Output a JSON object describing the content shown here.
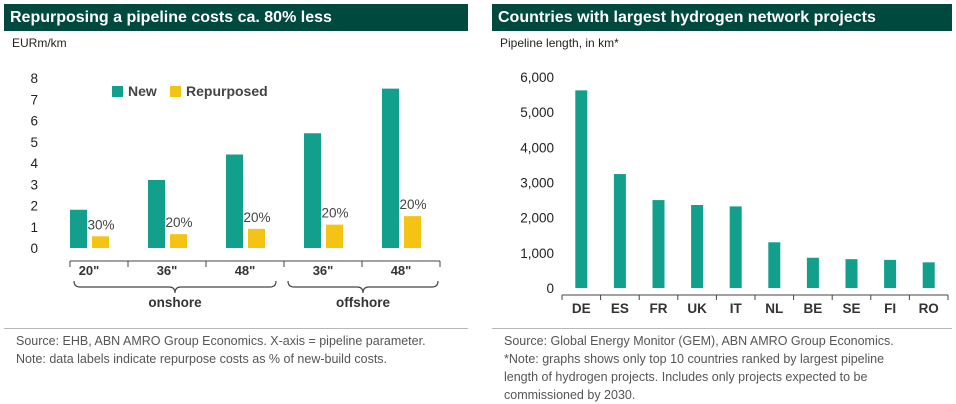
{
  "colors": {
    "title_bg": "#00493f",
    "new": "#12a08d",
    "repurposed": "#f5c313"
  },
  "left": {
    "title": "Repurposing a pipeline costs ca. 80% less",
    "unit": "EURm/km",
    "notes": [
      "Source: EHB, ABN AMRO Group Economics. X-axis = pipeline parameter.",
      "Note: data labels indicate repurpose costs as % of new-build costs."
    ]
  },
  "right": {
    "title": "Countries with largest hydrogen network projects",
    "unit": "Pipeline length, in km*",
    "notes": [
      "Source: Global Energy Monitor (GEM), ABN AMRO Group Economics.",
      "*Note: graphs shows only top 10 countries ranked by largest pipeline",
      "length of hydrogen projects. Includes only projects expected to be",
      "commissioned by 2030."
    ]
  },
  "chart_data": [
    {
      "type": "bar",
      "title": "Repurposing a pipeline costs ca. 80% less",
      "ylabel": "EURm/km",
      "ylim": [
        0,
        8
      ],
      "yticks": [
        0,
        1,
        2,
        3,
        4,
        5,
        6,
        7,
        8
      ],
      "categories": [
        "20\"",
        "36\"",
        "48\"",
        "36\"",
        "48\""
      ],
      "groups": [
        {
          "label": "onshore",
          "categories": [
            "20\"",
            "36\"",
            "48\""
          ]
        },
        {
          "label": "offshore",
          "categories": [
            "36\"",
            "48\""
          ]
        }
      ],
      "legend": [
        "New",
        "Repurposed"
      ],
      "legend_position": "top-left",
      "series": [
        {
          "name": "New",
          "values": [
            1.8,
            3.2,
            4.4,
            5.4,
            7.5
          ]
        },
        {
          "name": "Repurposed",
          "values": [
            0.55,
            0.65,
            0.9,
            1.1,
            1.5
          ]
        }
      ],
      "data_labels": [
        "30%",
        "20%",
        "20%",
        "20%",
        "20%"
      ]
    },
    {
      "type": "bar",
      "title": "Countries with largest hydrogen network projects",
      "ylabel": "Pipeline length, in km*",
      "ylim": [
        0,
        6000
      ],
      "yticks": [
        0,
        1000,
        2000,
        3000,
        4000,
        5000,
        6000
      ],
      "ytick_labels": [
        "0",
        "1,000",
        "2,000",
        "3,000",
        "4,000",
        "5,000",
        "6,000"
      ],
      "categories": [
        "DE",
        "ES",
        "FR",
        "UK",
        "IT",
        "NL",
        "BE",
        "SE",
        "FI",
        "RO"
      ],
      "values": [
        5620,
        3240,
        2500,
        2360,
        2320,
        1300,
        860,
        820,
        800,
        730
      ]
    }
  ]
}
